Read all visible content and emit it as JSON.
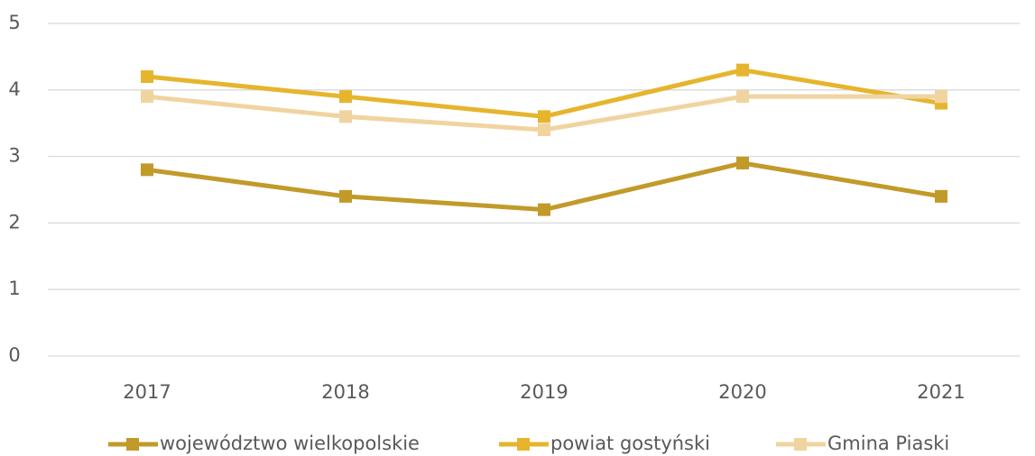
{
  "chart_data": {
    "type": "line",
    "categories": [
      "2017",
      "2018",
      "2019",
      "2020",
      "2021"
    ],
    "series": [
      {
        "name": "województwo wielkopolskie",
        "color": "#c29a2a",
        "values": [
          2.8,
          2.4,
          2.2,
          2.9,
          2.4
        ]
      },
      {
        "name": "powiat gostyński",
        "color": "#e6b52d",
        "values": [
          4.2,
          3.9,
          3.6,
          4.3,
          3.8
        ]
      },
      {
        "name": "Gmina Piaski",
        "color": "#f0d4a0",
        "values": [
          3.9,
          3.6,
          3.4,
          3.9,
          3.9
        ]
      }
    ],
    "ylim": [
      0,
      5
    ],
    "yticks": [
      0,
      1,
      2,
      3,
      4,
      5
    ],
    "grid": true,
    "legend": "bottom"
  }
}
